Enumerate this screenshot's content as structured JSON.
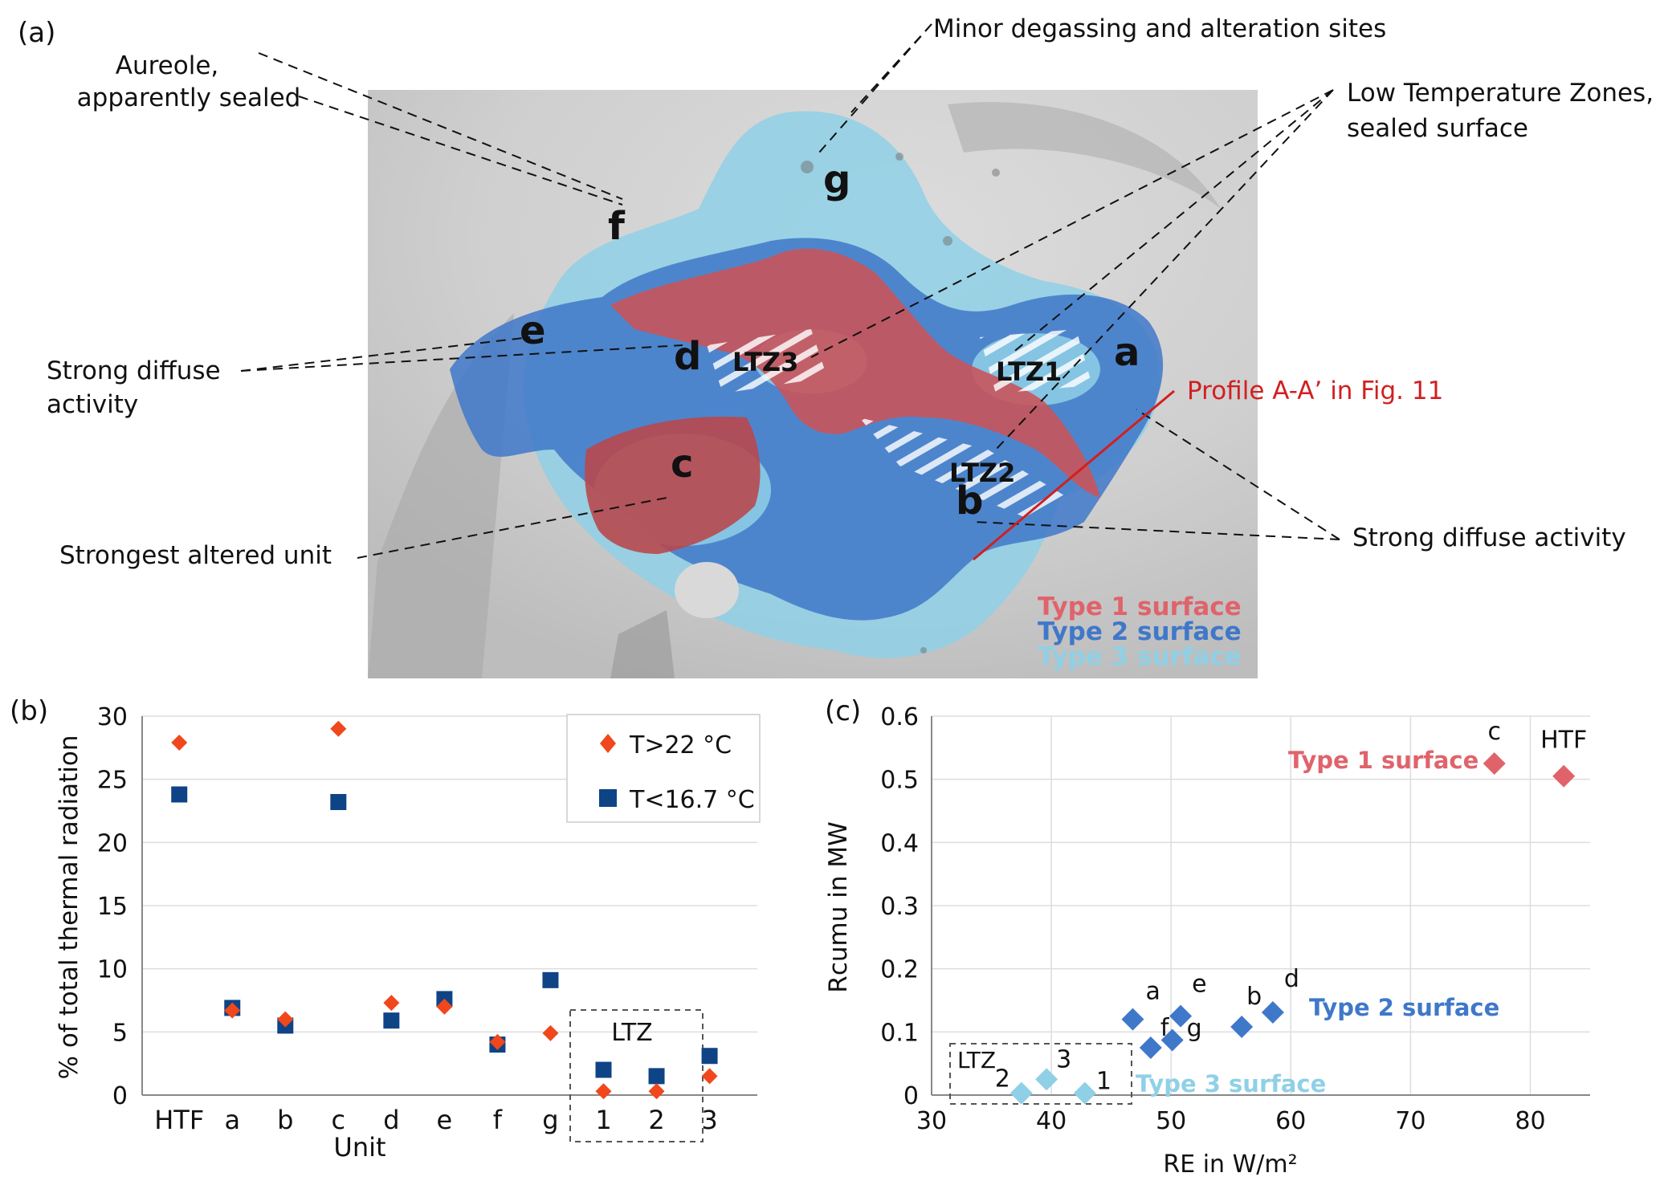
{
  "panel_a": {
    "label": "(a)",
    "unit_labels": [
      "a",
      "b",
      "c",
      "d",
      "e",
      "f",
      "g"
    ],
    "ltz_labels": [
      "LTZ1",
      "LTZ2",
      "LTZ3"
    ],
    "annotations": {
      "aureole_l1": "Aureole,",
      "aureole_l2": "apparently sealed",
      "minor": "Minor degassing and alteration sites",
      "ltz_l1": "Low Temperature Zones,",
      "ltz_l2": "sealed surface",
      "strong_left_l1": "Strong diffuse",
      "strong_left_l2": "activity",
      "strongest": "Strongest altered unit",
      "strong_right": "Strong diffuse activity",
      "profile": "Profile A-A’ in Fig. 11"
    },
    "legend": [
      "Type 1 surface",
      "Type 2 surface",
      "Type 3 surface"
    ],
    "colors": {
      "type1": "#e0636b",
      "type2": "#3f78c9",
      "type3": "#8fd0e6",
      "profile": "#d21f1f",
      "background": "#c9c9c9"
    }
  },
  "chart_data": [
    {
      "type": "scatter",
      "panel_label": "(b)",
      "title": "",
      "xlabel": "Unit",
      "ylabel": "% of total thermal radiation",
      "categories": [
        "HTF",
        "a",
        "b",
        "c",
        "d",
        "e",
        "f",
        "g",
        "1",
        "2",
        "3"
      ],
      "ylim": [
        0,
        30
      ],
      "yticks": [
        0,
        5,
        10,
        15,
        20,
        25,
        30
      ],
      "grid": true,
      "legend_position": "top-right",
      "group_box_label": "LTZ",
      "series": [
        {
          "name": "T>22 °C",
          "marker": "diamond",
          "color": "#f0471c",
          "values": [
            27.9,
            6.7,
            6.0,
            29.0,
            7.3,
            7.0,
            4.2,
            4.9,
            0.3,
            0.3,
            1.5
          ]
        },
        {
          "name": "T<16.7 °C",
          "marker": "square",
          "color": "#0e4486",
          "values": [
            23.8,
            6.9,
            5.5,
            23.2,
            5.9,
            7.6,
            4.0,
            9.1,
            2.0,
            1.5,
            3.1
          ]
        }
      ]
    },
    {
      "type": "scatter",
      "panel_label": "(c)",
      "title": "",
      "xlabel": "RE in W/m²",
      "ylabel": "Rcumu in MW",
      "xlim": [
        30,
        85
      ],
      "xticks": [
        30,
        40,
        50,
        60,
        70,
        80
      ],
      "ylim": [
        0,
        0.6
      ],
      "yticks": [
        "0",
        "0.1",
        "0.2",
        "0.3",
        "0.4",
        "0.5",
        "0.6"
      ],
      "grid": true,
      "group_box_label": "LTZ",
      "series": [
        {
          "name": "Type 1 surface",
          "color": "#e0636b",
          "points": [
            {
              "label": "c",
              "x": 77,
              "y": 0.525
            },
            {
              "label": "HTF",
              "x": 82.8,
              "y": 0.505
            }
          ]
        },
        {
          "name": "Type 2 surface",
          "color": "#3f78c9",
          "points": [
            {
              "label": "a",
              "x": 46.8,
              "y": 0.12
            },
            {
              "label": "f",
              "x": 48.3,
              "y": 0.075
            },
            {
              "label": "e",
              "x": 50.8,
              "y": 0.125
            },
            {
              "label": "g",
              "x": 50.1,
              "y": 0.087
            },
            {
              "label": "b",
              "x": 55.9,
              "y": 0.108
            },
            {
              "label": "d",
              "x": 58.5,
              "y": 0.131
            }
          ]
        },
        {
          "name": "Type 3 surface",
          "color": "#8fd0e6",
          "points": [
            {
              "label": "2",
              "x": 37.5,
              "y": 0.003
            },
            {
              "label": "3",
              "x": 39.6,
              "y": 0.025
            },
            {
              "label": "1",
              "x": 42.8,
              "y": 0.003
            }
          ]
        }
      ]
    }
  ]
}
